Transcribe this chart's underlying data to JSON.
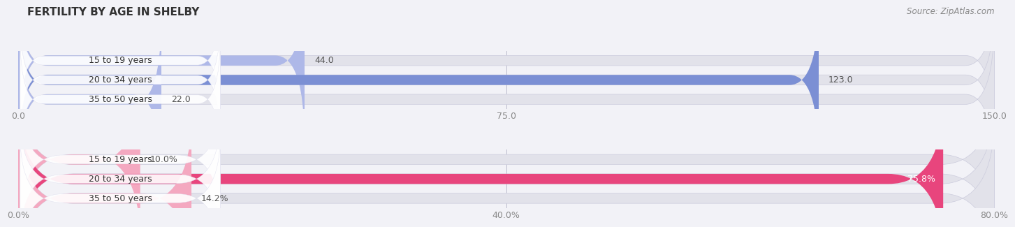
{
  "title": "FERTILITY BY AGE IN SHELBY",
  "source": "Source: ZipAtlas.com",
  "top_chart": {
    "categories": [
      "15 to 19 years",
      "20 to 34 years",
      "35 to 50 years"
    ],
    "values": [
      44.0,
      123.0,
      22.0
    ],
    "max_val": 150.0,
    "tick_vals": [
      0.0,
      75.0,
      150.0
    ],
    "tick_labels": [
      "0.0",
      "75.0",
      "150.0"
    ],
    "bar_color_light": "#aeb8e8",
    "bar_color_dark": "#7b8fd4",
    "label_inside_color": "#ffffff",
    "label_outside_color": "#555555"
  },
  "bottom_chart": {
    "categories": [
      "15 to 19 years",
      "20 to 34 years",
      "35 to 50 years"
    ],
    "values": [
      10.0,
      75.8,
      14.2
    ],
    "max_val": 80.0,
    "tick_vals": [
      0.0,
      40.0,
      80.0
    ],
    "tick_labels": [
      "0.0%",
      "40.0%",
      "80.0%"
    ],
    "bar_color_light": "#f4a8c0",
    "bar_color_dark": "#e8457d",
    "label_inside_color": "#ffffff",
    "label_outside_color": "#555555"
  },
  "bg_color": "#f2f2f7",
  "bar_bg_color": "#e2e2ea",
  "bar_height": 0.52,
  "label_fontsize": 9,
  "tick_fontsize": 9,
  "title_fontsize": 11,
  "source_fontsize": 8.5
}
